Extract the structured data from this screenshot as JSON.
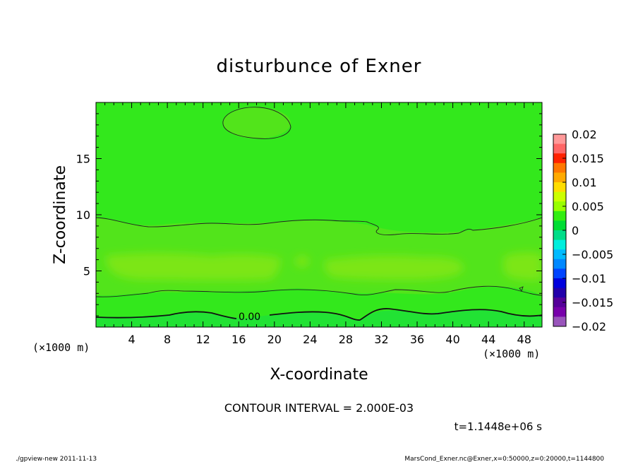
{
  "chart_data": {
    "type": "heatmap",
    "title": "disturbunce of Exner",
    "xlabel": "X-coordinate",
    "ylabel": "Z-coordinate",
    "x_unit": "(×1000 m)",
    "y_unit": "(×1000 m)",
    "xlim": [
      0,
      50
    ],
    "ylim": [
      0,
      20
    ],
    "x_ticks": [
      "4",
      "8",
      "12",
      "16",
      "20",
      "24",
      "28",
      "32",
      "36",
      "40",
      "44",
      "48"
    ],
    "y_ticks": [
      "5",
      "10",
      "15"
    ],
    "colorbar": {
      "min": -0.02,
      "max": 0.02,
      "tick_labels": [
        "0.02",
        "0.015",
        "0.01",
        "0.005",
        "0",
        "−0.005",
        "−0.01",
        "−0.015",
        "−0.02"
      ],
      "colors": [
        "#ff9999",
        "#ff6666",
        "#ff2200",
        "#ff7700",
        "#ffaa00",
        "#ffdd00",
        "#ccff00",
        "#99ff00",
        "#33ee11",
        "#00dd33",
        "#00dd88",
        "#00eedd",
        "#00bbff",
        "#0088ff",
        "#0044ff",
        "#0000dd",
        "#2200aa",
        "#550099",
        "#7700aa",
        "#9955bb"
      ]
    },
    "contour_labels": [
      "0.00"
    ],
    "contour_interval": "CONTOUR INTERVAL = 2.000E-03",
    "time": "t=1.1448e+06 s",
    "colors": {
      "background": "#33e81c",
      "band_light": "#7ce617",
      "band_mid": "#5de31a",
      "ground": "#22e234"
    }
  },
  "footer": {
    "left": "./gpview-new   2011-11-13",
    "right": "MarsCond_Exner.nc@Exner,x=0:50000,z=0:20000,t=1144800"
  }
}
